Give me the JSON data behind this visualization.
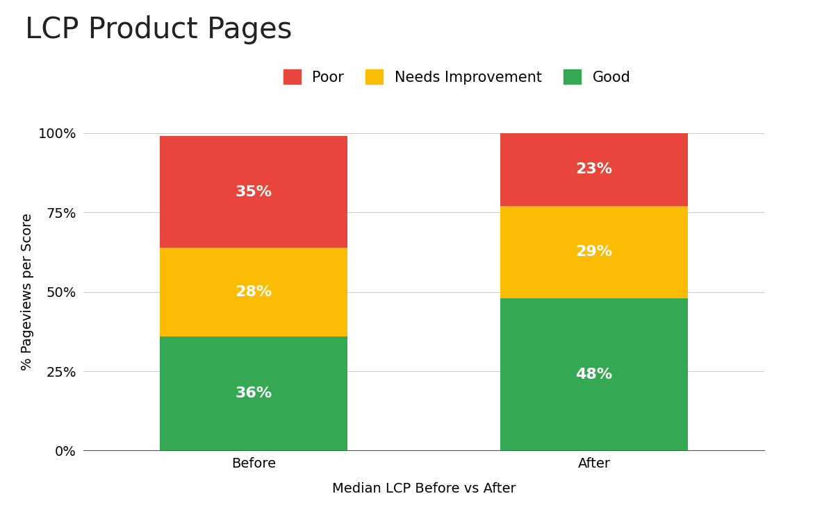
{
  "title": "LCP Product Pages",
  "xlabel": "Median LCP Before vs After",
  "ylabel": "% Pageviews per Score",
  "categories": [
    "Before",
    "After"
  ],
  "good": [
    36,
    48
  ],
  "needs": [
    28,
    29
  ],
  "poor": [
    35,
    23
  ],
  "good_color": "#34a853",
  "needs_color": "#fbbc04",
  "poor_color": "#e8453c",
  "label_color": "#ffffff",
  "yticks": [
    0,
    25,
    50,
    75,
    100
  ],
  "ytick_labels": [
    "0%",
    "25%",
    "50%",
    "75%",
    "100%"
  ],
  "bar_width": 0.55,
  "title_fontsize": 30,
  "label_fontsize": 14,
  "tick_fontsize": 14,
  "legend_fontsize": 15,
  "bar_label_fontsize": 16,
  "background_color": "#ffffff"
}
